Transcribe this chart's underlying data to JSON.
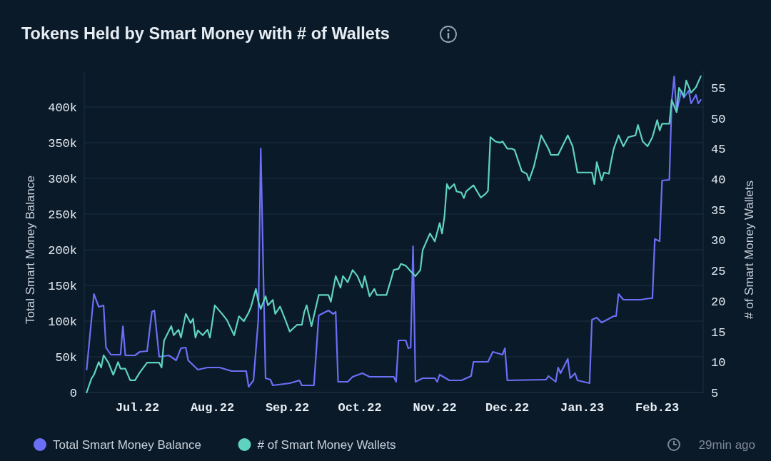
{
  "chart_data": {
    "type": "line",
    "title": "Tokens Held by Smart Money with # of Wallets",
    "ylabel": "Total Smart Money Balance",
    "y2label": "# of Smart Money Wallets",
    "annotations": [
      "29min ago"
    ],
    "xlim": [
      "2022-06-09",
      "2023-02-20"
    ],
    "xticks": [
      {
        "value": "2022-07-01",
        "label": "Jul.22"
      },
      {
        "value": "2022-08-01",
        "label": "Aug.22"
      },
      {
        "value": "2022-09-01",
        "label": "Sep.22"
      },
      {
        "value": "2022-10-01",
        "label": "Oct.22"
      },
      {
        "value": "2022-11-01",
        "label": "Nov.22"
      },
      {
        "value": "2022-12-01",
        "label": "Dec.22"
      },
      {
        "value": "2023-01-01",
        "label": "Jan.23"
      },
      {
        "value": "2023-02-01",
        "label": "Feb.23"
      }
    ],
    "ylim": [
      0,
      450000
    ],
    "yticks": [
      0,
      {
        "value": 50000,
        "label": "50k"
      },
      {
        "value": 100000,
        "label": "100k"
      },
      {
        "value": 150000,
        "label": "150k"
      },
      {
        "value": 200000,
        "label": "200k"
      },
      {
        "value": 250000,
        "label": "250k"
      },
      {
        "value": 300000,
        "label": "300k"
      },
      {
        "value": 350000,
        "label": "350k"
      },
      {
        "value": 400000,
        "label": "400k"
      }
    ],
    "y2lim": [
      5,
      57.7
    ],
    "y2ticks": [
      5,
      10,
      15,
      20,
      25,
      30,
      35,
      40,
      45,
      50,
      55
    ],
    "grid": "y",
    "legend": "bottom",
    "line_style": "solid",
    "series": [
      {
        "name": "Total Smart Money Balance",
        "color": "#6b6ff5",
        "x": [
          "2022-06-10",
          "2022-06-13",
          "2022-06-15",
          "2022-06-17",
          "2022-06-18",
          "2022-06-20",
          "2022-06-24",
          "2022-06-25",
          "2022-06-26",
          "2022-06-30",
          "2022-07-02",
          "2022-07-05",
          "2022-07-07",
          "2022-07-08",
          "2022-07-10",
          "2022-07-14",
          "2022-07-17",
          "2022-07-19",
          "2022-07-21",
          "2022-07-22",
          "2022-07-26",
          "2022-07-30",
          "2022-08-04",
          "2022-08-09",
          "2022-08-15",
          "2022-08-16",
          "2022-08-18",
          "2022-08-20",
          "2022-08-21",
          "2022-08-23",
          "2022-08-25",
          "2022-08-26",
          "2022-09-02",
          "2022-09-06",
          "2022-09-07",
          "2022-09-09",
          "2022-09-12",
          "2022-09-14",
          "2022-09-18",
          "2022-09-20",
          "2022-09-21",
          "2022-09-22",
          "2022-09-26",
          "2022-09-28",
          "2022-10-02",
          "2022-10-05",
          "2022-10-15",
          "2022-10-16",
          "2022-10-17",
          "2022-10-20",
          "2022-10-21",
          "2022-10-22",
          "2022-10-23",
          "2022-10-24",
          "2022-10-27",
          "2022-11-01",
          "2022-11-02",
          "2022-11-03",
          "2022-11-07",
          "2022-11-12",
          "2022-11-16",
          "2022-11-17",
          "2022-11-23",
          "2022-11-25",
          "2022-11-29",
          "2022-11-30",
          "2022-12-01",
          "2022-12-17",
          "2022-12-18",
          "2022-12-21",
          "2022-12-22",
          "2022-12-23",
          "2022-12-26",
          "2022-12-27",
          "2022-12-29",
          "2022-12-30",
          "2023-01-04",
          "2023-01-05",
          "2023-01-07",
          "2023-01-09",
          "2023-01-14",
          "2023-01-15",
          "2023-01-16",
          "2023-01-18",
          "2023-01-25",
          "2023-01-29",
          "2023-01-30",
          "2023-01-31",
          "2023-02-02",
          "2023-02-03",
          "2023-02-06",
          "2023-02-07",
          "2023-02-08",
          "2023-02-09",
          "2023-02-11",
          "2023-02-12",
          "2023-02-14",
          "2023-02-15",
          "2023-02-17",
          "2023-02-18",
          "2023-02-19"
        ],
        "values": [
          32000,
          138000,
          120000,
          122000,
          63000,
          53000,
          53000,
          93000,
          52000,
          52000,
          57000,
          58000,
          113000,
          115000,
          50000,
          52000,
          45000,
          62000,
          63000,
          45000,
          32000,
          35000,
          35000,
          30000,
          30000,
          8000,
          17000,
          102000,
          342000,
          20000,
          18000,
          10000,
          13000,
          17000,
          10000,
          10000,
          10000,
          108000,
          115000,
          110000,
          113000,
          15000,
          15000,
          22000,
          27000,
          22000,
          22000,
          15000,
          73000,
          73000,
          62000,
          63000,
          205000,
          15000,
          20000,
          20000,
          15000,
          25000,
          17000,
          17000,
          23000,
          43000,
          43000,
          57000,
          53000,
          62000,
          17000,
          18000,
          23000,
          15000,
          35000,
          27000,
          47000,
          20000,
          27000,
          17000,
          13000,
          102000,
          105000,
          98000,
          107000,
          107000,
          138000,
          130000,
          130000,
          132000,
          132000,
          215000,
          212000,
          297000,
          298000,
          408000,
          443000,
          393000,
          423000,
          413000,
          423000,
          405000,
          417000,
          405000,
          410000
        ]
      },
      {
        "name": "# of Smart Money Wallets",
        "color": "#5fd3bf",
        "axis": "y2",
        "x": [
          "2022-06-10",
          "2022-06-12",
          "2022-06-13",
          "2022-06-15",
          "2022-06-16",
          "2022-06-17",
          "2022-06-19",
          "2022-06-21",
          "2022-06-23",
          "2022-06-24",
          "2022-06-26",
          "2022-06-28",
          "2022-06-30",
          "2022-07-02",
          "2022-07-05",
          "2022-07-10",
          "2022-07-11",
          "2022-07-12",
          "2022-07-15",
          "2022-07-16",
          "2022-07-18",
          "2022-07-19",
          "2022-07-21",
          "2022-07-23",
          "2022-07-24",
          "2022-07-25",
          "2022-07-26",
          "2022-07-28",
          "2022-07-30",
          "2022-07-31",
          "2022-08-02",
          "2022-08-05",
          "2022-08-07",
          "2022-08-10",
          "2022-08-12",
          "2022-08-14",
          "2022-08-16",
          "2022-08-17",
          "2022-08-19",
          "2022-08-20",
          "2022-08-21",
          "2022-08-23",
          "2022-08-24",
          "2022-08-26",
          "2022-08-27",
          "2022-08-29",
          "2022-08-31",
          "2022-09-02",
          "2022-09-05",
          "2022-09-07",
          "2022-09-08",
          "2022-09-09",
          "2022-09-11",
          "2022-09-14",
          "2022-09-18",
          "2022-09-19",
          "2022-09-21",
          "2022-09-23",
          "2022-09-24",
          "2022-09-26",
          "2022-09-28",
          "2022-09-30",
          "2022-10-02",
          "2022-10-03",
          "2022-10-05",
          "2022-10-07",
          "2022-10-08",
          "2022-10-12",
          "2022-10-14",
          "2022-10-15",
          "2022-10-17",
          "2022-10-18",
          "2022-10-20",
          "2022-10-22",
          "2022-10-24",
          "2022-10-26",
          "2022-10-27",
          "2022-10-30",
          "2022-11-01",
          "2022-11-03",
          "2022-11-04",
          "2022-11-05",
          "2022-11-06",
          "2022-11-07",
          "2022-11-09",
          "2022-11-10",
          "2022-11-12",
          "2022-11-13",
          "2022-11-14",
          "2022-11-17",
          "2022-11-20",
          "2022-11-22",
          "2022-11-23",
          "2022-11-24",
          "2022-11-26",
          "2022-11-28",
          "2022-11-29",
          "2022-12-01",
          "2022-12-03",
          "2022-12-04",
          "2022-12-07",
          "2022-12-09",
          "2022-12-10",
          "2022-12-12",
          "2022-12-15",
          "2022-12-18",
          "2022-12-19",
          "2022-12-22",
          "2022-12-24",
          "2022-12-26",
          "2022-12-28",
          "2022-12-30",
          "2023-01-05",
          "2023-01-06",
          "2023-01-07",
          "2023-01-09",
          "2023-01-10",
          "2023-01-12",
          "2023-01-13",
          "2023-01-14",
          "2023-01-16",
          "2023-01-18",
          "2023-01-20",
          "2023-01-23",
          "2023-01-24",
          "2023-01-26",
          "2023-01-28",
          "2023-01-30",
          "2023-02-01",
          "2023-02-02",
          "2023-02-03",
          "2023-02-06",
          "2023-02-07",
          "2023-02-09",
          "2023-02-10",
          "2023-02-12",
          "2023-02-13",
          "2023-02-15",
          "2023-02-17",
          "2023-02-19"
        ],
        "values": [
          5,
          7.3,
          7.9,
          10,
          9.1,
          11.1,
          9.9,
          7.9,
          10,
          8.9,
          8.9,
          7,
          7,
          8.3,
          9.9,
          9.9,
          9.1,
          13.5,
          15.9,
          14.4,
          15.3,
          14,
          17.9,
          16.4,
          17.1,
          14,
          15.2,
          14.4,
          15.3,
          14,
          19.3,
          17.9,
          16.9,
          14.4,
          17.5,
          16.7,
          18.1,
          19.1,
          22,
          19.9,
          18.7,
          20.8,
          19.3,
          20.2,
          17.9,
          19.1,
          17.1,
          15,
          16.1,
          16.1,
          18.2,
          19.3,
          15.9,
          21,
          21,
          19.9,
          24.1,
          22.2,
          24.1,
          23.1,
          25.1,
          24.1,
          22.2,
          24.1,
          20.8,
          22,
          21,
          21,
          23.7,
          25.1,
          25.3,
          26.1,
          25.8,
          24.9,
          24.1,
          25.1,
          28.4,
          31.1,
          29.8,
          32.8,
          31.1,
          33.9,
          39.2,
          38.4,
          39.2,
          38,
          37.8,
          36.9,
          38,
          39,
          37,
          37.6,
          38.1,
          46.9,
          46.2,
          46,
          46.2,
          45,
          45,
          44.8,
          41.3,
          40.9,
          39.8,
          42.1,
          47.2,
          45,
          44,
          44,
          45.6,
          47.2,
          45.4,
          41.1,
          41.1,
          39.2,
          42.8,
          39.8,
          41.1,
          40.9,
          43.1,
          45,
          47.2,
          45.4,
          46.9,
          47.2,
          48.9,
          46.2,
          45.4,
          46.9,
          49.7,
          48,
          49.1,
          49.1,
          53,
          51,
          55,
          53.6,
          56.2,
          54.2,
          55.1,
          56.9
        ]
      }
    ]
  }
}
